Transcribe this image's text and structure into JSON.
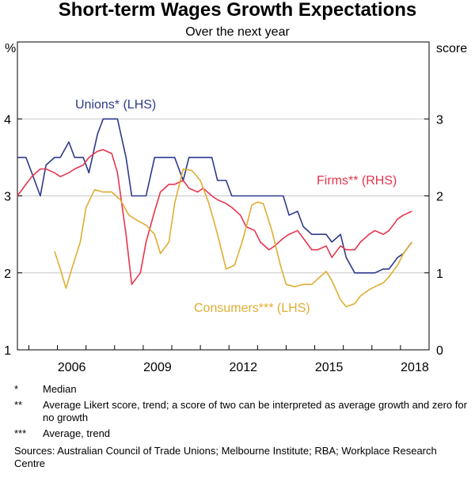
{
  "chart_data": {
    "type": "line",
    "title": "Short-term Wages Growth Expectations",
    "subtitle": "Over the next year",
    "left_axis": {
      "unit": "%",
      "ylim": [
        1,
        5
      ],
      "ticks": [
        1,
        2,
        3,
        4
      ]
    },
    "right_axis": {
      "unit": "score",
      "ylim": [
        0,
        4
      ],
      "ticks": [
        0,
        1,
        2,
        3
      ]
    },
    "x_axis": {
      "xlim": [
        2004.6,
        2019.0
      ],
      "tick_labels": [
        "2006",
        "2009",
        "2012",
        "2015",
        "2018"
      ],
      "tick_values": [
        2006,
        2009,
        2012,
        2015,
        2018
      ]
    },
    "series": [
      {
        "name": "Unions",
        "label": "Unions* (LHS)",
        "axis": "left",
        "color": "#2e3a8c",
        "step": true,
        "x": [
          2004.6,
          2004.9,
          2005.1,
          2005.4,
          2005.6,
          2005.9,
          2006.1,
          2006.4,
          2006.6,
          2006.9,
          2007.1,
          2007.4,
          2007.6,
          2007.9,
          2008.1,
          2008.4,
          2008.6,
          2008.9,
          2009.1,
          2009.4,
          2009.6,
          2009.9,
          2010.1,
          2010.4,
          2010.6,
          2010.9,
          2011.1,
          2011.4,
          2011.6,
          2011.9,
          2012.1,
          2012.4,
          2012.6,
          2012.9,
          2013.1,
          2013.4,
          2013.6,
          2013.9,
          2014.1,
          2014.4,
          2014.6,
          2014.9,
          2015.1,
          2015.4,
          2015.6,
          2015.9,
          2016.1,
          2016.4,
          2016.6,
          2016.9,
          2017.1,
          2017.4,
          2017.6,
          2017.9,
          2018.1,
          2018.4
        ],
        "y": [
          3.5,
          3.5,
          3.3,
          3.0,
          3.4,
          3.5,
          3.5,
          3.7,
          3.5,
          3.5,
          3.3,
          3.8,
          4.0,
          4.0,
          4.0,
          3.5,
          3.0,
          3.0,
          3.0,
          3.5,
          3.5,
          3.5,
          3.5,
          3.2,
          3.5,
          3.5,
          3.5,
          3.5,
          3.2,
          3.2,
          3.0,
          3.0,
          3.0,
          3.0,
          3.0,
          3.0,
          3.0,
          3.0,
          2.75,
          2.8,
          2.6,
          2.5,
          2.5,
          2.5,
          2.4,
          2.5,
          2.2,
          2.0,
          2.0,
          2.0,
          2.0,
          2.05,
          2.05,
          2.2,
          2.25,
          2.4
        ]
      },
      {
        "name": "Firms",
        "label": "Firms** (RHS)",
        "axis": "right",
        "color": "#e8344e",
        "x": [
          2004.6,
          2004.9,
          2005.1,
          2005.4,
          2005.6,
          2005.9,
          2006.1,
          2006.4,
          2006.6,
          2006.9,
          2007.1,
          2007.4,
          2007.6,
          2007.9,
          2008.1,
          2008.4,
          2008.6,
          2008.9,
          2009.1,
          2009.4,
          2009.6,
          2009.9,
          2010.1,
          2010.4,
          2010.6,
          2010.9,
          2011.1,
          2011.4,
          2011.6,
          2011.9,
          2012.1,
          2012.4,
          2012.6,
          2012.9,
          2013.1,
          2013.4,
          2013.6,
          2013.9,
          2014.1,
          2014.4,
          2014.6,
          2014.9,
          2015.1,
          2015.4,
          2015.6,
          2015.9,
          2016.1,
          2016.4,
          2016.6,
          2016.9,
          2017.1,
          2017.4,
          2017.6,
          2017.9,
          2018.1,
          2018.4
        ],
        "y": [
          2.0,
          2.15,
          2.25,
          2.35,
          2.35,
          2.3,
          2.25,
          2.3,
          2.35,
          2.4,
          2.5,
          2.58,
          2.6,
          2.55,
          2.3,
          1.5,
          0.85,
          1.0,
          1.4,
          1.8,
          2.05,
          2.15,
          2.15,
          2.2,
          2.1,
          2.05,
          2.1,
          2.0,
          1.95,
          1.9,
          1.85,
          1.75,
          1.6,
          1.55,
          1.4,
          1.3,
          1.35,
          1.45,
          1.5,
          1.55,
          1.45,
          1.3,
          1.3,
          1.35,
          1.2,
          1.35,
          1.3,
          1.3,
          1.4,
          1.5,
          1.55,
          1.5,
          1.55,
          1.7,
          1.75,
          1.8
        ]
      },
      {
        "name": "Consumers",
        "label": "Consumers*** (LHS)",
        "axis": "left",
        "color": "#e0ad31",
        "x": [
          2005.9,
          2006.1,
          2006.3,
          2006.5,
          2006.8,
          2007.0,
          2007.3,
          2007.6,
          2007.9,
          2008.2,
          2008.5,
          2008.8,
          2009.1,
          2009.4,
          2009.6,
          2009.9,
          2010.1,
          2010.4,
          2010.7,
          2011.0,
          2011.3,
          2011.6,
          2011.9,
          2012.2,
          2012.5,
          2012.8,
          2013.0,
          2013.2,
          2013.5,
          2013.8,
          2014.0,
          2014.3,
          2014.6,
          2014.9,
          2015.1,
          2015.4,
          2015.6,
          2015.9,
          2016.1,
          2016.4,
          2016.6,
          2016.9,
          2017.1,
          2017.4,
          2017.6,
          2017.9,
          2018.1,
          2018.4
        ],
        "y": [
          2.28,
          2.05,
          1.8,
          2.05,
          2.4,
          2.85,
          3.08,
          3.05,
          3.05,
          2.95,
          2.75,
          2.68,
          2.62,
          2.5,
          2.25,
          2.4,
          2.9,
          3.35,
          3.33,
          3.2,
          2.9,
          2.5,
          2.05,
          2.1,
          2.45,
          2.88,
          2.92,
          2.9,
          2.55,
          2.1,
          1.85,
          1.82,
          1.85,
          1.85,
          1.92,
          2.02,
          1.9,
          1.65,
          1.56,
          1.6,
          1.7,
          1.78,
          1.82,
          1.87,
          1.95,
          2.1,
          2.25,
          2.4
        ]
      }
    ],
    "notes": [
      {
        "symbol": "*",
        "text": "Median"
      },
      {
        "symbol": "**",
        "text": "Average Likert score, trend; a score of two can be interpreted as average growth and zero for no growth"
      },
      {
        "symbol": "***",
        "text": "Average, trend"
      }
    ],
    "sources": "Sources: Australian Council of Trade Unions; Melbourne Institute; RBA; Workplace Research Centre"
  }
}
